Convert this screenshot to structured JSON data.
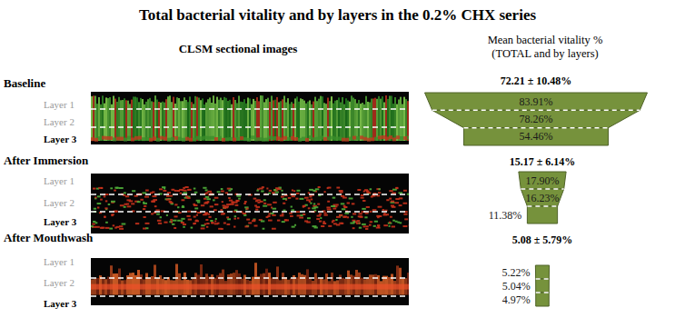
{
  "title": "Total bacterial vitality and by layers in the 0.2% CHX series",
  "image_header": "CLSM sectional images",
  "value_header": [
    "Mean bacterial vitality %",
    "(TOTAL and by layers)"
  ],
  "chart_data": [
    {
      "type": "funnel",
      "title": "Baseline",
      "categories": [
        "Layer 1",
        "Layer 2",
        "Layer 3"
      ],
      "values": [
        83.91,
        78.26,
        54.46
      ],
      "value_labels": [
        "83.91%",
        "78.26%",
        "54.46%"
      ],
      "data_labels": true,
      "color": "#76923c",
      "total": 72.21,
      "total_error": 10.48,
      "total_label": "72.21 ± 10.48%"
    },
    {
      "type": "funnel",
      "title": "After Immersion",
      "categories": [
        "Layer 1",
        "Layer 2",
        "Layer 3"
      ],
      "values": [
        17.9,
        16.23,
        11.38
      ],
      "value_labels": [
        "17.90%",
        "16.23%",
        "11.38%"
      ],
      "data_labels": true,
      "color": "#76923c",
      "total": 15.17,
      "total_error": 6.14,
      "total_label": "15.17 ± 6.14%"
    },
    {
      "type": "funnel",
      "title": "After Mouthwash",
      "categories": [
        "Layer 1",
        "Layer 2",
        "Layer 3"
      ],
      "values": [
        5.22,
        5.04,
        4.97
      ],
      "value_labels": [
        "5.22%",
        "5.04%",
        "4.97%"
      ],
      "data_labels": true,
      "color": "#76923c",
      "total": 5.08,
      "total_error": 5.79,
      "total_label": "5.08 ± 5.79%"
    }
  ]
}
